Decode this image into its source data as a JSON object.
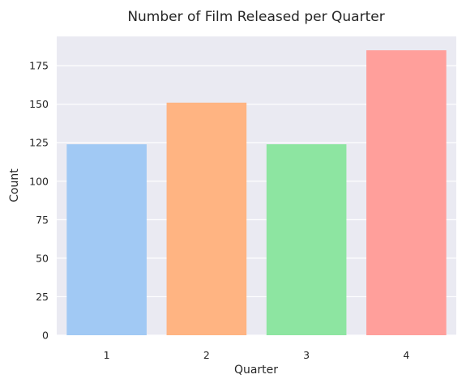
{
  "chart_data": {
    "type": "bar",
    "title": "Number of Film Released per Quarter",
    "xlabel": "Quarter",
    "ylabel": "Count",
    "categories": [
      "1",
      "2",
      "3",
      "4"
    ],
    "values": [
      124,
      151,
      124,
      185
    ],
    "colors": [
      "#a1c9f4",
      "#ffb482",
      "#8de5a1",
      "#ff9f9b"
    ],
    "ylim": [
      0,
      194
    ],
    "yticks": [
      0,
      25,
      50,
      75,
      100,
      125,
      150,
      175
    ],
    "grid": true,
    "plot_background": "#eaeaf2",
    "grid_color": "#ffffff",
    "legend": "none"
  }
}
